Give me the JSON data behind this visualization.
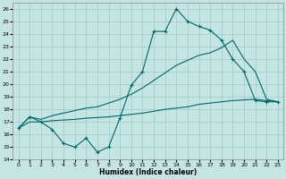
{
  "xlabel": "Humidex (Indice chaleur)",
  "bg_color": "#c5e5e5",
  "grid_color": "#a0c8c8",
  "line_color": "#006666",
  "ylim": [
    14,
    26.5
  ],
  "xlim": [
    -0.5,
    23.5
  ],
  "yticks": [
    14,
    15,
    16,
    17,
    18,
    19,
    20,
    21,
    22,
    23,
    24,
    25,
    26
  ],
  "xticks": [
    0,
    1,
    2,
    3,
    4,
    5,
    6,
    7,
    8,
    9,
    10,
    11,
    12,
    13,
    14,
    15,
    16,
    17,
    18,
    19,
    20,
    21,
    22,
    23
  ],
  "line1_y": [
    16.5,
    17.4,
    17.0,
    16.4,
    15.3,
    15.0,
    15.7,
    14.6,
    15.0,
    17.3,
    19.9,
    21.0,
    24.2,
    24.2,
    26.0,
    25.0,
    24.6,
    24.3,
    23.5,
    22.0,
    21.0,
    18.7,
    18.6,
    18.6
  ],
  "line2_y": [
    16.5,
    17.0,
    17.0,
    17.1,
    17.15,
    17.2,
    17.3,
    17.35,
    17.4,
    17.5,
    17.6,
    17.7,
    17.85,
    18.0,
    18.1,
    18.2,
    18.4,
    18.5,
    18.6,
    18.7,
    18.75,
    18.8,
    18.7,
    18.6
  ],
  "line3_y": [
    16.5,
    17.4,
    17.2,
    17.5,
    17.7,
    17.9,
    18.1,
    18.2,
    18.5,
    18.8,
    19.2,
    19.7,
    20.3,
    20.9,
    21.5,
    21.9,
    22.3,
    22.5,
    22.9,
    23.5,
    22.0,
    21.0,
    18.8,
    18.6
  ]
}
